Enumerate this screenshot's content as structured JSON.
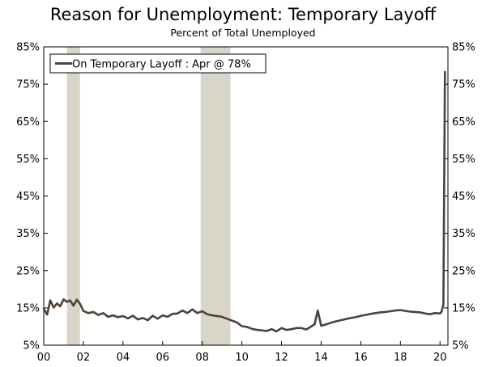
{
  "chart_data": {
    "type": "line",
    "title": "Reason for Unemployment: Temporary Layoff",
    "subtitle": "Percent of Total Unemployed",
    "x_range": [
      2000,
      2020.4
    ],
    "ylim": [
      5,
      85
    ],
    "y_ticks": [
      5,
      15,
      25,
      35,
      45,
      55,
      65,
      75,
      85
    ],
    "y_tick_labels": [
      "5%",
      "15%",
      "25%",
      "35%",
      "45%",
      "55%",
      "65%",
      "75%",
      "85%"
    ],
    "x_ticks": [
      2000,
      2002,
      2004,
      2006,
      2008,
      2010,
      2012,
      2014,
      2016,
      2018,
      2020
    ],
    "x_tick_labels": [
      "00",
      "02",
      "04",
      "06",
      "08",
      "10",
      "12",
      "14",
      "16",
      "18",
      "20"
    ],
    "recessions": [
      [
        2001.17,
        2001.83
      ],
      [
        2007.92,
        2009.42
      ]
    ],
    "legend": {
      "placement": "top-left",
      "text": "On Temporary Layoff : Apr @ 78%"
    },
    "colors": {
      "line": "#4e4239",
      "recession": "#d9d5c8"
    },
    "series": [
      {
        "name": "On Temporary Layoff",
        "x": [
          2000.0,
          2000.17,
          2000.33,
          2000.5,
          2000.67,
          2000.83,
          2001.0,
          2001.17,
          2001.33,
          2001.5,
          2001.67,
          2001.83,
          2002.0,
          2002.25,
          2002.5,
          2002.75,
          2003.0,
          2003.25,
          2003.5,
          2003.75,
          2004.0,
          2004.25,
          2004.5,
          2004.75,
          2005.0,
          2005.25,
          2005.5,
          2005.75,
          2006.0,
          2006.25,
          2006.5,
          2006.75,
          2007.0,
          2007.25,
          2007.5,
          2007.75,
          2008.0,
          2008.25,
          2008.5,
          2008.75,
          2009.0,
          2009.25,
          2009.5,
          2009.75,
          2010.0,
          2010.25,
          2010.5,
          2010.75,
          2011.0,
          2011.25,
          2011.5,
          2011.75,
          2012.0,
          2012.25,
          2012.5,
          2012.75,
          2013.0,
          2013.25,
          2013.5,
          2013.67,
          2013.83,
          2014.0,
          2014.25,
          2014.5,
          2014.75,
          2015.0,
          2015.25,
          2015.5,
          2015.75,
          2016.0,
          2016.25,
          2016.5,
          2016.75,
          2017.0,
          2017.25,
          2017.5,
          2017.75,
          2018.0,
          2018.25,
          2018.5,
          2018.75,
          2019.0,
          2019.25,
          2019.5,
          2019.75,
          2020.0,
          2020.08,
          2020.17,
          2020.25
        ],
        "values": [
          14.8,
          13.2,
          17.0,
          15.1,
          16.2,
          15.4,
          17.3,
          16.6,
          17.0,
          15.6,
          17.2,
          16.1,
          14.2,
          13.6,
          13.9,
          13.1,
          13.6,
          12.6,
          13.0,
          12.5,
          12.8,
          12.2,
          12.9,
          11.9,
          12.3,
          11.7,
          12.9,
          12.1,
          13.0,
          12.6,
          13.4,
          13.5,
          14.3,
          13.6,
          14.6,
          13.6,
          14.1,
          13.3,
          13.0,
          12.8,
          12.6,
          12.1,
          11.6,
          11.1,
          10.1,
          9.9,
          9.4,
          9.1,
          9.0,
          8.8,
          9.3,
          8.7,
          9.6,
          9.1,
          9.3,
          9.6,
          9.6,
          9.2,
          10.0,
          10.6,
          14.3,
          10.2,
          10.6,
          11.0,
          11.4,
          11.7,
          12.0,
          12.3,
          12.5,
          12.9,
          13.1,
          13.4,
          13.6,
          13.8,
          13.9,
          14.1,
          14.3,
          14.4,
          14.2,
          14.0,
          13.9,
          13.8,
          13.5,
          13.3,
          13.6,
          13.5,
          14.0,
          16.0,
          78.3
        ]
      }
    ]
  }
}
